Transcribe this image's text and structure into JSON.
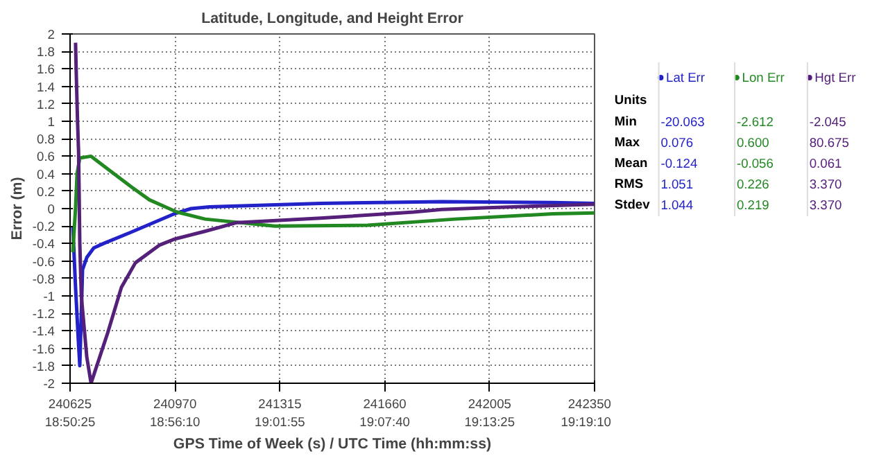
{
  "chart_data": {
    "type": "line",
    "title": "Latitude, Longitude, and Height Error",
    "xlabel": "GPS Time of Week (s) / UTC Time (hh:mm:ss)",
    "ylabel": "Error (m)",
    "xlim": [
      240625,
      242350
    ],
    "ylim": [
      -2,
      2
    ],
    "xticks": [
      240625,
      240970,
      241315,
      241660,
      242005,
      242350
    ],
    "x2lim": [
      18.840278,
      19.319444
    ],
    "x2ticks": [
      {
        "value": 18.840278,
        "label": "18:50:25"
      },
      {
        "value": 18.936111,
        "label": "18:56:10"
      },
      {
        "value": 19.031944,
        "label": "19:01:55"
      },
      {
        "value": 19.127778,
        "label": "19:07:40"
      },
      {
        "value": 19.223611,
        "label": "19:13:25"
      },
      {
        "value": 19.319444,
        "label": "19:19:10"
      }
    ],
    "yticks": [
      -2,
      -1.8,
      -1.6,
      -1.4,
      -1.2,
      -1,
      -0.8,
      -0.6,
      -0.4,
      -0.2,
      0,
      0.2,
      0.4,
      0.6,
      0.8,
      1,
      1.2,
      1.4,
      1.6,
      1.8,
      2
    ],
    "grid": true,
    "legend": "right",
    "line_style": "solid",
    "series": [
      {
        "name": "Lat Err",
        "color": "#2222c8",
        "x": [
          240634,
          240643,
          240652,
          240657,
          240662,
          240666,
          240680,
          240703,
          240735,
          240826,
          240968,
          241023,
          241083,
          241449,
          241847,
          242213,
          242350
        ],
        "values": [
          -0.2,
          -0.9,
          -1.5,
          -1.8,
          -1.2,
          -0.7,
          -0.56,
          -0.45,
          -0.4,
          -0.27,
          -0.06,
          0.0,
          0.02,
          0.06,
          0.08,
          0.07,
          0.06
        ]
      },
      {
        "name": "Lon Err",
        "color": "#228822",
        "x": [
          240634,
          240643,
          240648,
          240657,
          240694,
          240735,
          240826,
          240886,
          240977,
          241069,
          241298,
          241604,
          241892,
          242213,
          242350
        ],
        "values": [
          -0.5,
          0.0,
          0.4,
          0.58,
          0.6,
          0.49,
          0.25,
          0.1,
          -0.04,
          -0.12,
          -0.2,
          -0.19,
          -0.12,
          -0.06,
          -0.05
        ]
      },
      {
        "name": "Hgt Err",
        "color": "#55207a",
        "x": [
          240643,
          240645,
          240647,
          240649,
          240651,
          240653,
          240657,
          240662,
          240680,
          240694,
          240749,
          240794,
          240840,
          240918,
          240968,
          241069,
          241174,
          241449,
          241755,
          241847,
          241998,
          242350
        ],
        "values": [
          1.9,
          1.6,
          1.33,
          1.07,
          0.85,
          0.65,
          -0.4,
          -1.0,
          -1.7,
          -2.0,
          -1.42,
          -0.9,
          -0.62,
          -0.42,
          -0.35,
          -0.26,
          -0.16,
          -0.11,
          -0.04,
          -0.01,
          0.01,
          0.05
        ]
      }
    ],
    "annotations": [
      "Units",
      "Min",
      "-20.063",
      "-2.612",
      "-2.045",
      "Max",
      "0.076",
      "0.600",
      "80.675",
      "Mean",
      "-0.124",
      "-0.056",
      "0.061",
      "RMS",
      "1.051",
      "0.226",
      "3.370",
      "Stdev",
      "1.044",
      "0.219",
      "3.370"
    ]
  }
}
